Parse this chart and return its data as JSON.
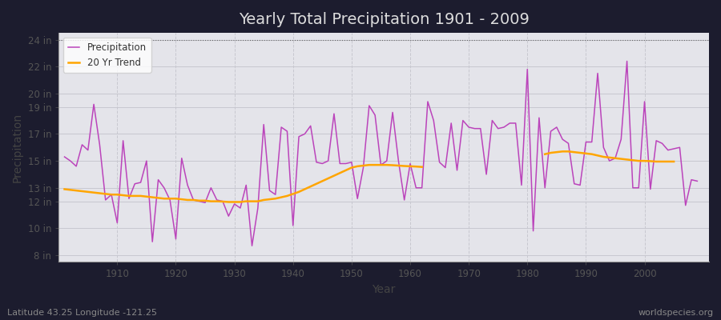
{
  "title": "Yearly Total Precipitation 1901 - 2009",
  "xlabel": "Year",
  "ylabel": "Precipitation",
  "fig_bg_color": "#1a1a2e",
  "plot_bg_color": "#e8e8ec",
  "precip_color": "#bb44bb",
  "trend_color": "#ffa500",
  "yticks": [
    8,
    10,
    12,
    13,
    15,
    17,
    19,
    20,
    22,
    24
  ],
  "ytick_labels": [
    "8 in",
    "10 in",
    "12 in",
    "13 in",
    "15 in",
    "17 in",
    "19 in",
    "20 in",
    "22 in",
    "24 in"
  ],
  "ylim": [
    7.5,
    24.5
  ],
  "xlim": [
    1900,
    2011
  ],
  "years": [
    1901,
    1902,
    1903,
    1904,
    1905,
    1906,
    1907,
    1908,
    1909,
    1910,
    1911,
    1912,
    1913,
    1914,
    1915,
    1916,
    1917,
    1918,
    1919,
    1920,
    1921,
    1922,
    1923,
    1924,
    1925,
    1926,
    1927,
    1928,
    1929,
    1930,
    1931,
    1932,
    1933,
    1934,
    1935,
    1936,
    1937,
    1938,
    1939,
    1940,
    1941,
    1942,
    1943,
    1944,
    1945,
    1946,
    1947,
    1948,
    1949,
    1950,
    1951,
    1952,
    1953,
    1954,
    1955,
    1956,
    1957,
    1958,
    1959,
    1960,
    1961,
    1962,
    1963,
    1964,
    1965,
    1966,
    1967,
    1968,
    1969,
    1970,
    1971,
    1972,
    1973,
    1974,
    1975,
    1976,
    1977,
    1978,
    1979,
    1980,
    1981,
    1982,
    1983,
    1984,
    1985,
    1986,
    1987,
    1988,
    1989,
    1990,
    1991,
    1992,
    1993,
    1994,
    1995,
    1996,
    1997,
    1998,
    1999,
    2000,
    2001,
    2002,
    2003,
    2004,
    2005,
    2006,
    2007,
    2008,
    2009
  ],
  "precip": [
    15.3,
    15.0,
    14.6,
    16.2,
    15.8,
    19.2,
    16.2,
    12.1,
    12.5,
    10.4,
    16.5,
    12.2,
    13.3,
    13.4,
    15.0,
    9.0,
    13.6,
    13.0,
    12.1,
    9.2,
    15.2,
    13.2,
    12.1,
    12.0,
    11.9,
    13.0,
    12.1,
    12.0,
    10.9,
    11.8,
    11.5,
    13.2,
    8.7,
    11.5,
    17.7,
    12.8,
    12.5,
    17.5,
    17.2,
    10.2,
    16.8,
    17.0,
    17.6,
    14.9,
    14.8,
    15.0,
    18.5,
    14.8,
    14.8,
    14.9,
    12.2,
    14.5,
    19.1,
    18.4,
    14.7,
    15.0,
    18.6,
    15.0,
    12.1,
    14.8,
    13.0,
    13.0,
    19.4,
    18.0,
    14.9,
    14.5,
    17.8,
    14.3,
    18.0,
    17.5,
    17.4,
    17.4,
    14.0,
    18.0,
    17.4,
    17.5,
    17.8,
    17.8,
    13.2,
    21.8,
    9.8,
    18.2,
    13.0,
    17.2,
    17.5,
    16.6,
    16.3,
    13.3,
    13.2,
    16.4,
    16.4,
    21.5,
    16.0,
    15.0,
    15.2,
    16.6,
    22.4,
    13.0,
    13.0,
    19.4,
    12.9,
    16.5,
    16.3,
    15.8,
    15.9,
    16.0,
    11.7,
    13.6,
    13.5
  ],
  "trend_segments": [
    {
      "years": [
        1901,
        1902,
        1903,
        1904,
        1905,
        1906,
        1907,
        1908,
        1909,
        1910,
        1911,
        1912,
        1913,
        1914,
        1915,
        1916,
        1917,
        1918,
        1919,
        1920,
        1921,
        1922,
        1923,
        1924,
        1925,
        1926,
        1927,
        1928,
        1929,
        1930,
        1931,
        1932,
        1933,
        1934,
        1935,
        1936,
        1937,
        1938,
        1939,
        1940,
        1941,
        1942,
        1943,
        1944,
        1945,
        1946,
        1947,
        1948,
        1949,
        1950,
        1951,
        1952,
        1953,
        1954,
        1955,
        1956,
        1957,
        1958,
        1959,
        1960,
        1961,
        1962
      ],
      "values": [
        12.9,
        12.85,
        12.8,
        12.75,
        12.7,
        12.65,
        12.6,
        12.55,
        12.5,
        12.5,
        12.45,
        12.4,
        12.4,
        12.4,
        12.35,
        12.3,
        12.25,
        12.2,
        12.2,
        12.2,
        12.15,
        12.1,
        12.1,
        12.05,
        12.05,
        12.0,
        12.0,
        11.98,
        11.95,
        11.95,
        11.95,
        12.0,
        12.0,
        12.0,
        12.1,
        12.15,
        12.2,
        12.3,
        12.4,
        12.55,
        12.7,
        12.9,
        13.1,
        13.3,
        13.5,
        13.7,
        13.9,
        14.1,
        14.3,
        14.5,
        14.6,
        14.65,
        14.7,
        14.7,
        14.7,
        14.7,
        14.68,
        14.65,
        14.62,
        14.6,
        14.58,
        14.55
      ]
    },
    {
      "years": [
        1983,
        1984,
        1985,
        1986,
        1987,
        1988,
        1989,
        1990,
        1991,
        1992,
        1993,
        1994,
        1995,
        1996,
        1997,
        1998,
        1999,
        2000,
        2001,
        2002,
        2003,
        2004,
        2005
      ],
      "values": [
        15.5,
        15.6,
        15.65,
        15.7,
        15.7,
        15.65,
        15.6,
        15.55,
        15.5,
        15.4,
        15.3,
        15.25,
        15.2,
        15.15,
        15.1,
        15.05,
        15.0,
        15.0,
        14.98,
        14.95,
        14.95,
        14.95,
        14.95
      ]
    }
  ],
  "footer_left": "Latitude 43.25 Longitude -121.25",
  "footer_right": "worldspecies.org"
}
